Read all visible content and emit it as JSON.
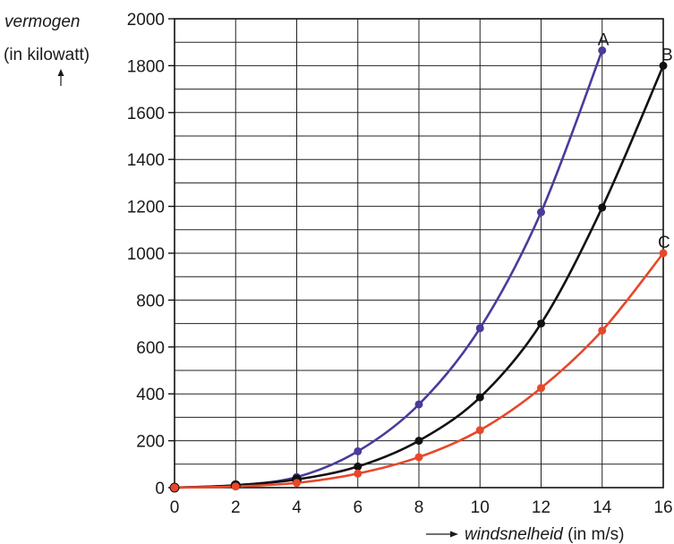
{
  "chart_data": {
    "type": "line",
    "title": "",
    "ylabel_italic": "vermogen",
    "ylabel_unit": "(in kilowatt)",
    "xlabel_italic": "windsnelheid",
    "xlabel_unit": " (in m/s)",
    "xlim": [
      0,
      16
    ],
    "ylim": [
      0,
      2000
    ],
    "xticks": [
      0,
      2,
      4,
      6,
      8,
      10,
      12,
      14,
      16
    ],
    "yticks": [
      0,
      200,
      400,
      600,
      800,
      1000,
      1200,
      1400,
      1600,
      1800,
      2000
    ],
    "grid": true,
    "x": [
      0,
      2,
      4,
      6,
      8,
      10,
      12,
      14,
      16
    ],
    "series": [
      {
        "name": "A",
        "color": "#4b3b9a",
        "x": [
          0,
          2,
          4,
          6,
          8,
          10,
          12,
          14
        ],
        "values": [
          0,
          10,
          45,
          155,
          355,
          680,
          1175,
          1865
        ]
      },
      {
        "name": "B",
        "color": "#111111",
        "x": [
          0,
          2,
          4,
          6,
          8,
          10,
          12,
          14,
          16
        ],
        "values": [
          0,
          10,
          35,
          90,
          200,
          385,
          700,
          1195,
          1800
        ]
      },
      {
        "name": "C",
        "color": "#e8472a",
        "x": [
          0,
          2,
          4,
          6,
          8,
          10,
          12,
          14,
          16
        ],
        "values": [
          0,
          5,
          20,
          60,
          130,
          245,
          425,
          670,
          1000
        ]
      }
    ]
  }
}
